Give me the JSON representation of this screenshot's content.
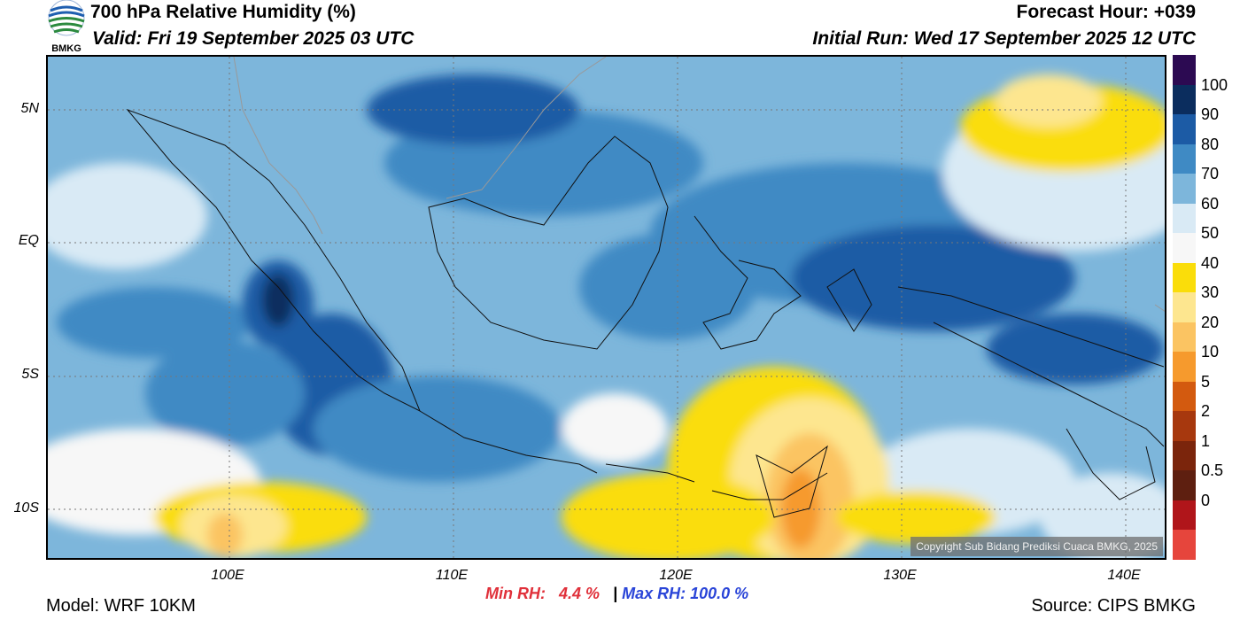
{
  "header": {
    "title": "700 hPa Relative Humidity (%)",
    "valid": "Valid: Fri 19 September 2025 03 UTC",
    "forecast_hour": "Forecast Hour: +039",
    "initial_run": "Initial Run: Wed 17 September 2025 12 UTC",
    "logo_text": "BMKG"
  },
  "axes": {
    "lat_labels": [
      "5N",
      "EQ",
      "5S",
      "10S"
    ],
    "lon_labels": [
      "100E",
      "110E",
      "120E",
      "130E",
      "140E"
    ]
  },
  "colorbar": {
    "labels": [
      "100",
      "90",
      "80",
      "70",
      "60",
      "50",
      "40",
      "30",
      "20",
      "10",
      "5",
      "2",
      "1",
      "0.5",
      "0"
    ],
    "colors": [
      "#2c0a52",
      "#0b2d5e",
      "#1c5ba5",
      "#3f8ac4",
      "#7db6db",
      "#d9eaf5",
      "#f7f7f7",
      "#fadd0a",
      "#fde68f",
      "#fbc462",
      "#f69a2d",
      "#d35a0f",
      "#a7380e",
      "#7b250c",
      "#5e1f10",
      "#b0151a",
      "#e6453c"
    ]
  },
  "stats": {
    "min_label": "Min RH:",
    "min_value": "4.4 %",
    "separator": "|",
    "max_label": "Max RH: 100.0 %"
  },
  "footer": {
    "model": "Model: WRF 10KM",
    "source": "Source: CIPS BMKG",
    "copyright": "Copyright Sub Bidang Prediksi Cuaca BMKG, 2025"
  }
}
